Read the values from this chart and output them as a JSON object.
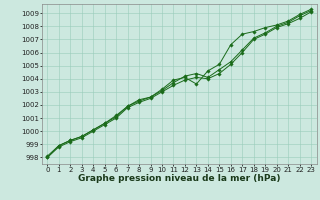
{
  "xlabel": "Graphe pression niveau de la mer (hPa)",
  "x_values": [
    0,
    1,
    2,
    3,
    4,
    5,
    6,
    7,
    8,
    9,
    10,
    11,
    12,
    13,
    14,
    15,
    16,
    17,
    18,
    19,
    20,
    21,
    22,
    23
  ],
  "y_line1": [
    998.0,
    998.8,
    999.2,
    999.5,
    1000.0,
    1000.5,
    1001.0,
    1001.8,
    1002.2,
    1002.5,
    1003.0,
    1003.5,
    1003.9,
    1004.1,
    1004.0,
    1004.4,
    1005.1,
    1006.0,
    1007.0,
    1007.4,
    1007.9,
    1008.2,
    1008.6,
    1009.1
  ],
  "y_line2": [
    998.1,
    998.9,
    999.3,
    999.6,
    1000.1,
    1000.6,
    1001.2,
    1001.9,
    1002.4,
    1002.6,
    1003.2,
    1003.9,
    1004.1,
    1003.6,
    1004.6,
    1005.1,
    1006.6,
    1007.4,
    1007.6,
    1007.9,
    1008.1,
    1008.4,
    1008.9,
    1009.3
  ],
  "y_line3": [
    998.0,
    998.9,
    999.3,
    999.6,
    1000.1,
    1000.6,
    1001.1,
    1001.9,
    1002.3,
    1002.6,
    1003.1,
    1003.7,
    1004.2,
    1004.4,
    1004.1,
    1004.7,
    1005.3,
    1006.2,
    1007.1,
    1007.5,
    1008.0,
    1008.3,
    1008.8,
    1009.2
  ],
  "line_color": "#1a6b1a",
  "bg_color": "#cce8df",
  "grid_color": "#99ccbb",
  "ylim": [
    997.5,
    1009.7
  ],
  "yticks": [
    998,
    999,
    1000,
    1001,
    1002,
    1003,
    1004,
    1005,
    1006,
    1007,
    1008,
    1009
  ],
  "xlim": [
    -0.5,
    23.5
  ],
  "xticks": [
    0,
    1,
    2,
    3,
    4,
    5,
    6,
    7,
    8,
    9,
    10,
    11,
    12,
    13,
    14,
    15,
    16,
    17,
    18,
    19,
    20,
    21,
    22,
    23
  ],
  "tick_fontsize": 5.0,
  "xlabel_fontsize": 6.5,
  "marker_size": 1.8,
  "line_width": 0.7
}
